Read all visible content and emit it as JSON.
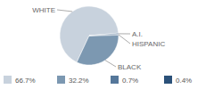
{
  "chart_data": {
    "type": "pie",
    "categories": [
      "WHITE",
      "BLACK",
      "A.I.",
      "HISPANIC"
    ],
    "values": [
      66.7,
      32.2,
      0.7,
      0.4
    ],
    "value_labels": [
      "66.7%",
      "32.2%",
      "0.7%",
      "0.4%"
    ],
    "colors": [
      "#c8d2dd",
      "#7c98b1",
      "#55779a",
      "#2b5179"
    ],
    "legend": "bottom"
  }
}
